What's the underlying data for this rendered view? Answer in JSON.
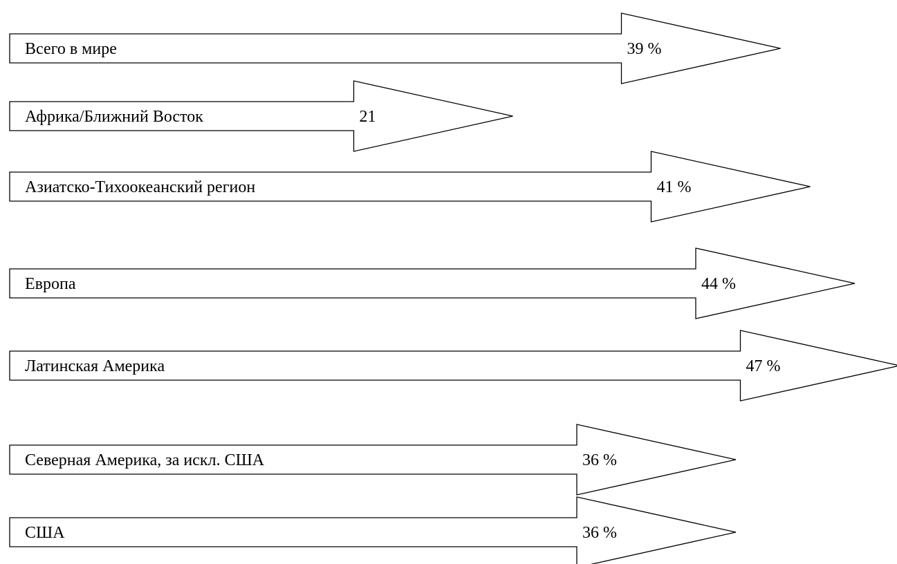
{
  "chart_data": {
    "type": "bar",
    "orientation": "horizontal",
    "mark": "arrow",
    "categories": [
      "Всего в мире",
      "Африка/Ближний Восток",
      "Азиатско-Тихоокеанский регион",
      "Европа",
      "Латинская Америка",
      "Северная Америка, за искл. США",
      "США"
    ],
    "values": [
      39,
      21,
      41,
      44,
      47,
      36,
      36
    ],
    "value_labels": [
      "39 %",
      "21",
      "41 %",
      "44 %",
      "47 %",
      "36 %",
      "36 %"
    ],
    "title": "",
    "xlabel": "",
    "ylabel": "",
    "grid": false,
    "legend": "none",
    "colors": {
      "fill": "#ffffff",
      "stroke": "#000000",
      "text": "#000000"
    }
  }
}
